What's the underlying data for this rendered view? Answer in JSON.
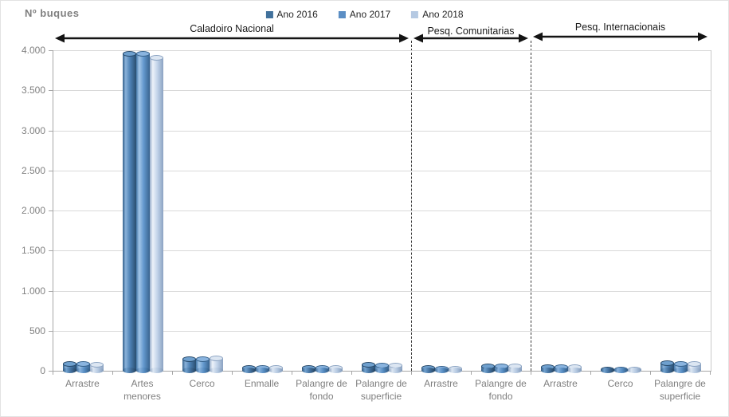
{
  "title": "Nº buques",
  "sections": [
    {
      "label": "Caladoiro Nacional",
      "from": 0,
      "to": 6
    },
    {
      "label": "Pesq. Comunitarias",
      "from": 6,
      "to": 8
    },
    {
      "label": "Pesq. Internacionais",
      "from": 8,
      "to": 11
    }
  ],
  "chart_data": {
    "type": "bar",
    "style": "3d-cylinder",
    "title": "Nº buques",
    "categories": [
      "Arrastre",
      "Artes menores",
      "Cerco",
      "Enmalle",
      "Palangre de fondo",
      "Palangre de superficie",
      "Arrastre",
      "Palangre de fondo",
      "Arrastre",
      "Cerco",
      "Palangre de superficie"
    ],
    "category_groups": [
      "Caladoiro Nacional",
      "Caladoiro Nacional",
      "Caladoiro Nacional",
      "Caladoiro Nacional",
      "Caladoiro Nacional",
      "Caladoiro Nacional",
      "Pesq. Comunitarias",
      "Pesq. Comunitarias",
      "Pesq. Internacionais",
      "Pesq. Internacionais",
      "Pesq. Internacionais"
    ],
    "series": [
      {
        "name": "Ano 2016",
        "color": "#41719C",
        "values": [
          88,
          3960,
          150,
          42,
          38,
          75,
          35,
          62,
          52,
          22,
          95
        ]
      },
      {
        "name": "Ano 2017",
        "color": "#5B8EC4",
        "values": [
          87,
          3965,
          152,
          40,
          37,
          72,
          34,
          62,
          50,
          20,
          92
        ]
      },
      {
        "name": "Ano 2018",
        "color": "#B5C9E2",
        "values": [
          80,
          3915,
          158,
          36,
          35,
          70,
          32,
          60,
          46,
          18,
          88
        ]
      }
    ],
    "ylim": [
      0,
      4000
    ],
    "ytick_step": 500,
    "ytick_labels": [
      "0",
      "500",
      "1.000",
      "1.500",
      "2.000",
      "2.500",
      "3.000",
      "3.500",
      "4.000"
    ],
    "grid": true,
    "legend_position": "top-center"
  }
}
